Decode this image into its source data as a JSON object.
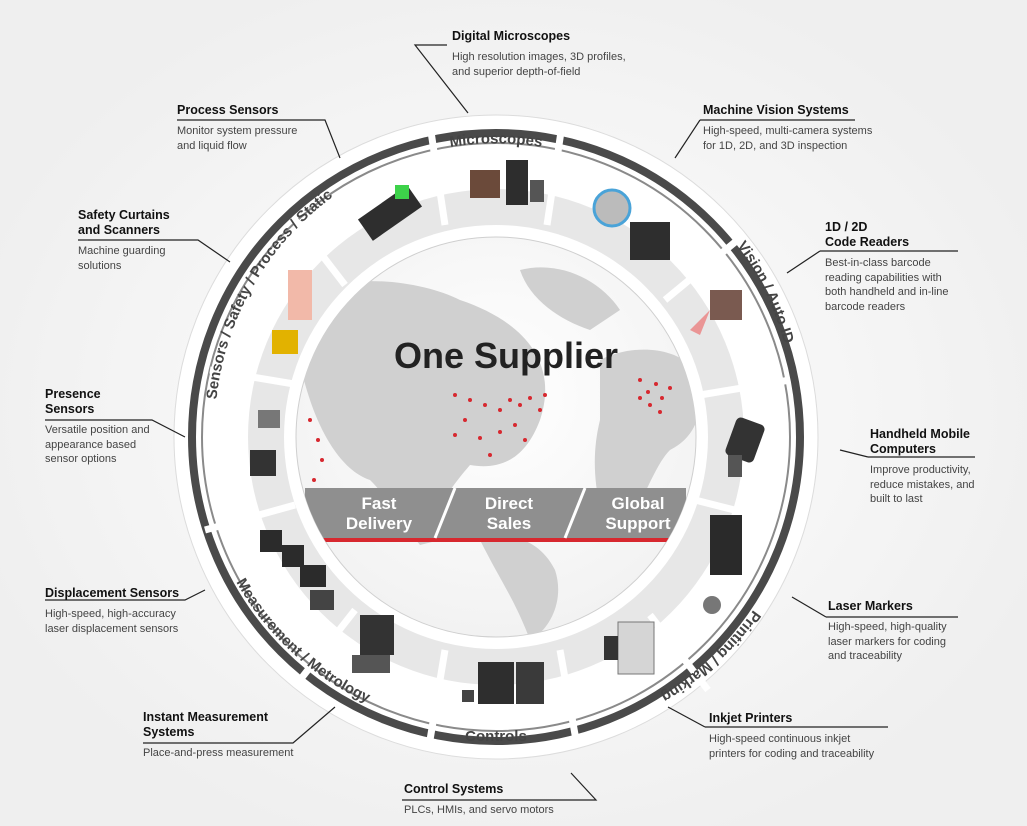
{
  "center": {
    "headline": "One Supplier",
    "banner": [
      "Fast\nDelivery",
      "Direct\nSales",
      "Global\nSupport"
    ]
  },
  "ring_labels": {
    "microscopes": "Microscopes",
    "vision": "Vision / Auto ID",
    "printing": "Printing / Marking",
    "controls": "Controls",
    "measurement": "Measurement / Metrology",
    "sensors": "Sensors / Safety / Process / Static"
  },
  "callouts": [
    {
      "title": "Digital Microscopes",
      "desc": "High resolution images, 3D profiles,\nand superior depth-of-field"
    },
    {
      "title": "Machine Vision Systems",
      "desc": "High-speed, multi-camera systems\nfor 1D, 2D, and 3D inspection"
    },
    {
      "title": "1D / 2D\nCode Readers",
      "desc": "Best-in-class barcode\nreading capabilities with\nboth handheld and in-line\nbarcode readers"
    },
    {
      "title": "Handheld Mobile\nComputers",
      "desc": "Improve productivity,\nreduce mistakes, and\nbuilt to last"
    },
    {
      "title": "Laser Markers",
      "desc": "High-speed, high-quality\nlaser markers for coding\nand traceability"
    },
    {
      "title": "Inkjet Printers",
      "desc": "High-speed continuous inkjet\nprinters for coding and traceability"
    },
    {
      "title": "Control Systems",
      "desc": "PLCs, HMIs, and servo motors"
    },
    {
      "title": "Instant Measurement\nSystems",
      "desc": "Place-and-press measurement"
    },
    {
      "title": "Displacement Sensors",
      "desc": "High-speed, high-accuracy\nlaser displacement sensors"
    },
    {
      "title": "Presence\nSensors",
      "desc": "Versatile position and\nappearance based\nsensor options"
    },
    {
      "title": "Safety Curtains\nand Scanners",
      "desc": "Machine guarding\nsolutions"
    },
    {
      "title": "Process Sensors",
      "desc": "Monitor system pressure\nand liquid flow"
    }
  ],
  "colors": {
    "accent": "#d7282f",
    "ring_dark": "#4a4a4a",
    "banner_gray": "#8f8f8f",
    "map_gray": "#c9c9c9"
  }
}
